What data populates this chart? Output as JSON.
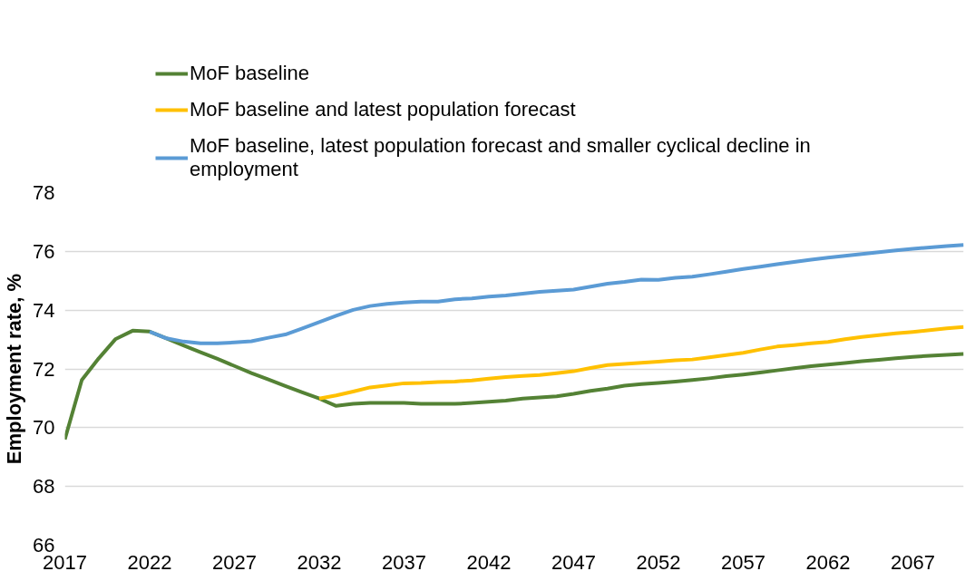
{
  "chart_data": {
    "type": "line",
    "ylabel": "Employment rate, %",
    "xlim": [
      2017,
      2070
    ],
    "ylim": [
      66,
      78
    ],
    "xticks": [
      2017,
      2022,
      2027,
      2032,
      2037,
      2042,
      2047,
      2052,
      2057,
      2062,
      2067
    ],
    "yticks": [
      66,
      68,
      70,
      72,
      74,
      76,
      78
    ],
    "grid": "y",
    "legend": "top",
    "line_style": "solid",
    "x": [
      2017,
      2018,
      2019,
      2020,
      2021,
      2022,
      2023,
      2024,
      2025,
      2026,
      2027,
      2028,
      2029,
      2030,
      2031,
      2032,
      2033,
      2034,
      2035,
      2036,
      2037,
      2038,
      2039,
      2040,
      2041,
      2042,
      2043,
      2044,
      2045,
      2046,
      2047,
      2048,
      2049,
      2050,
      2051,
      2052,
      2053,
      2054,
      2055,
      2056,
      2057,
      2058,
      2059,
      2060,
      2061,
      2062,
      2063,
      2064,
      2065,
      2066,
      2067,
      2068,
      2069,
      2070
    ],
    "series": [
      {
        "name": "MoF baseline",
        "color": "#548235",
        "values": [
          69.6,
          71.62,
          72.36,
          73.02,
          73.3,
          73.27,
          73.04,
          72.8,
          72.57,
          72.34,
          72.1,
          71.86,
          71.64,
          71.42,
          71.2,
          70.99,
          70.74,
          70.81,
          70.84,
          70.84,
          70.84,
          70.81,
          70.81,
          70.81,
          70.84,
          70.88,
          70.92,
          70.99,
          71.03,
          71.07,
          71.15,
          71.25,
          71.33,
          71.43,
          71.48,
          71.52,
          71.57,
          71.62,
          71.68,
          71.75,
          71.81,
          71.88,
          71.95,
          72.02,
          72.09,
          72.15,
          72.2,
          72.26,
          72.31,
          72.36,
          72.41,
          72.45,
          72.48,
          72.51
        ]
      },
      {
        "name": "MoF baseline and latest population forecast",
        "color": "#ffc000",
        "values": [
          null,
          null,
          null,
          null,
          null,
          null,
          null,
          null,
          null,
          null,
          null,
          null,
          null,
          null,
          null,
          70.99,
          71.1,
          71.23,
          71.37,
          71.44,
          71.51,
          71.52,
          71.55,
          71.57,
          71.61,
          71.67,
          71.72,
          71.76,
          71.79,
          71.85,
          71.92,
          72.03,
          72.13,
          72.17,
          72.21,
          72.25,
          72.29,
          72.32,
          72.39,
          72.47,
          72.55,
          72.66,
          72.76,
          72.81,
          72.87,
          72.92,
          73.01,
          73.09,
          73.15,
          73.21,
          73.26,
          73.32,
          73.38,
          73.43
        ]
      },
      {
        "name": "MoF baseline, latest population forecast and smaller cyclical decline in employment",
        "color": "#5b9bd5",
        "values": [
          null,
          null,
          null,
          null,
          null,
          73.27,
          73.04,
          72.93,
          72.87,
          72.87,
          72.9,
          72.94,
          73.06,
          73.17,
          73.38,
          73.59,
          73.81,
          74.01,
          74.14,
          74.21,
          74.26,
          74.29,
          74.29,
          74.37,
          74.4,
          74.46,
          74.5,
          74.56,
          74.62,
          74.66,
          74.7,
          74.8,
          74.9,
          74.96,
          75.04,
          75.03,
          75.1,
          75.14,
          75.22,
          75.31,
          75.4,
          75.48,
          75.56,
          75.64,
          75.72,
          75.79,
          75.85,
          75.91,
          75.97,
          76.03,
          76.09,
          76.13,
          76.18,
          76.22
        ]
      }
    ]
  }
}
